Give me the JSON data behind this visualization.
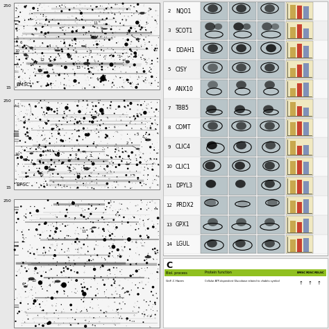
{
  "proteins": [
    {
      "num": 2,
      "name": "NQO1"
    },
    {
      "num": 3,
      "name": "SCOT1"
    },
    {
      "num": 4,
      "name": "DDAH1"
    },
    {
      "num": 5,
      "name": "CISY"
    },
    {
      "num": 6,
      "name": "ANX10"
    },
    {
      "num": 7,
      "name": "TBB5"
    },
    {
      "num": 8,
      "name": "COMT"
    },
    {
      "num": 9,
      "name": "CLIC4"
    },
    {
      "num": 10,
      "name": "CLIC1"
    },
    {
      "num": 11,
      "name": "DPYL3"
    },
    {
      "num": 12,
      "name": "PRDX2"
    },
    {
      "num": 13,
      "name": "GPX1"
    },
    {
      "num": 14,
      "name": "LGUL"
    }
  ],
  "left_panel_labels": [
    "BMSC",
    "DPSC",
    ""
  ],
  "section_c_label": "C",
  "section_c_columns": [
    "BMSC",
    "PDSC",
    "PDLSC"
  ],
  "section_c_col_header_color": "#90c020",
  "background_color": "#f0f0f0",
  "figure_width": 4.74,
  "figure_height": 4.74,
  "dpi": 100
}
